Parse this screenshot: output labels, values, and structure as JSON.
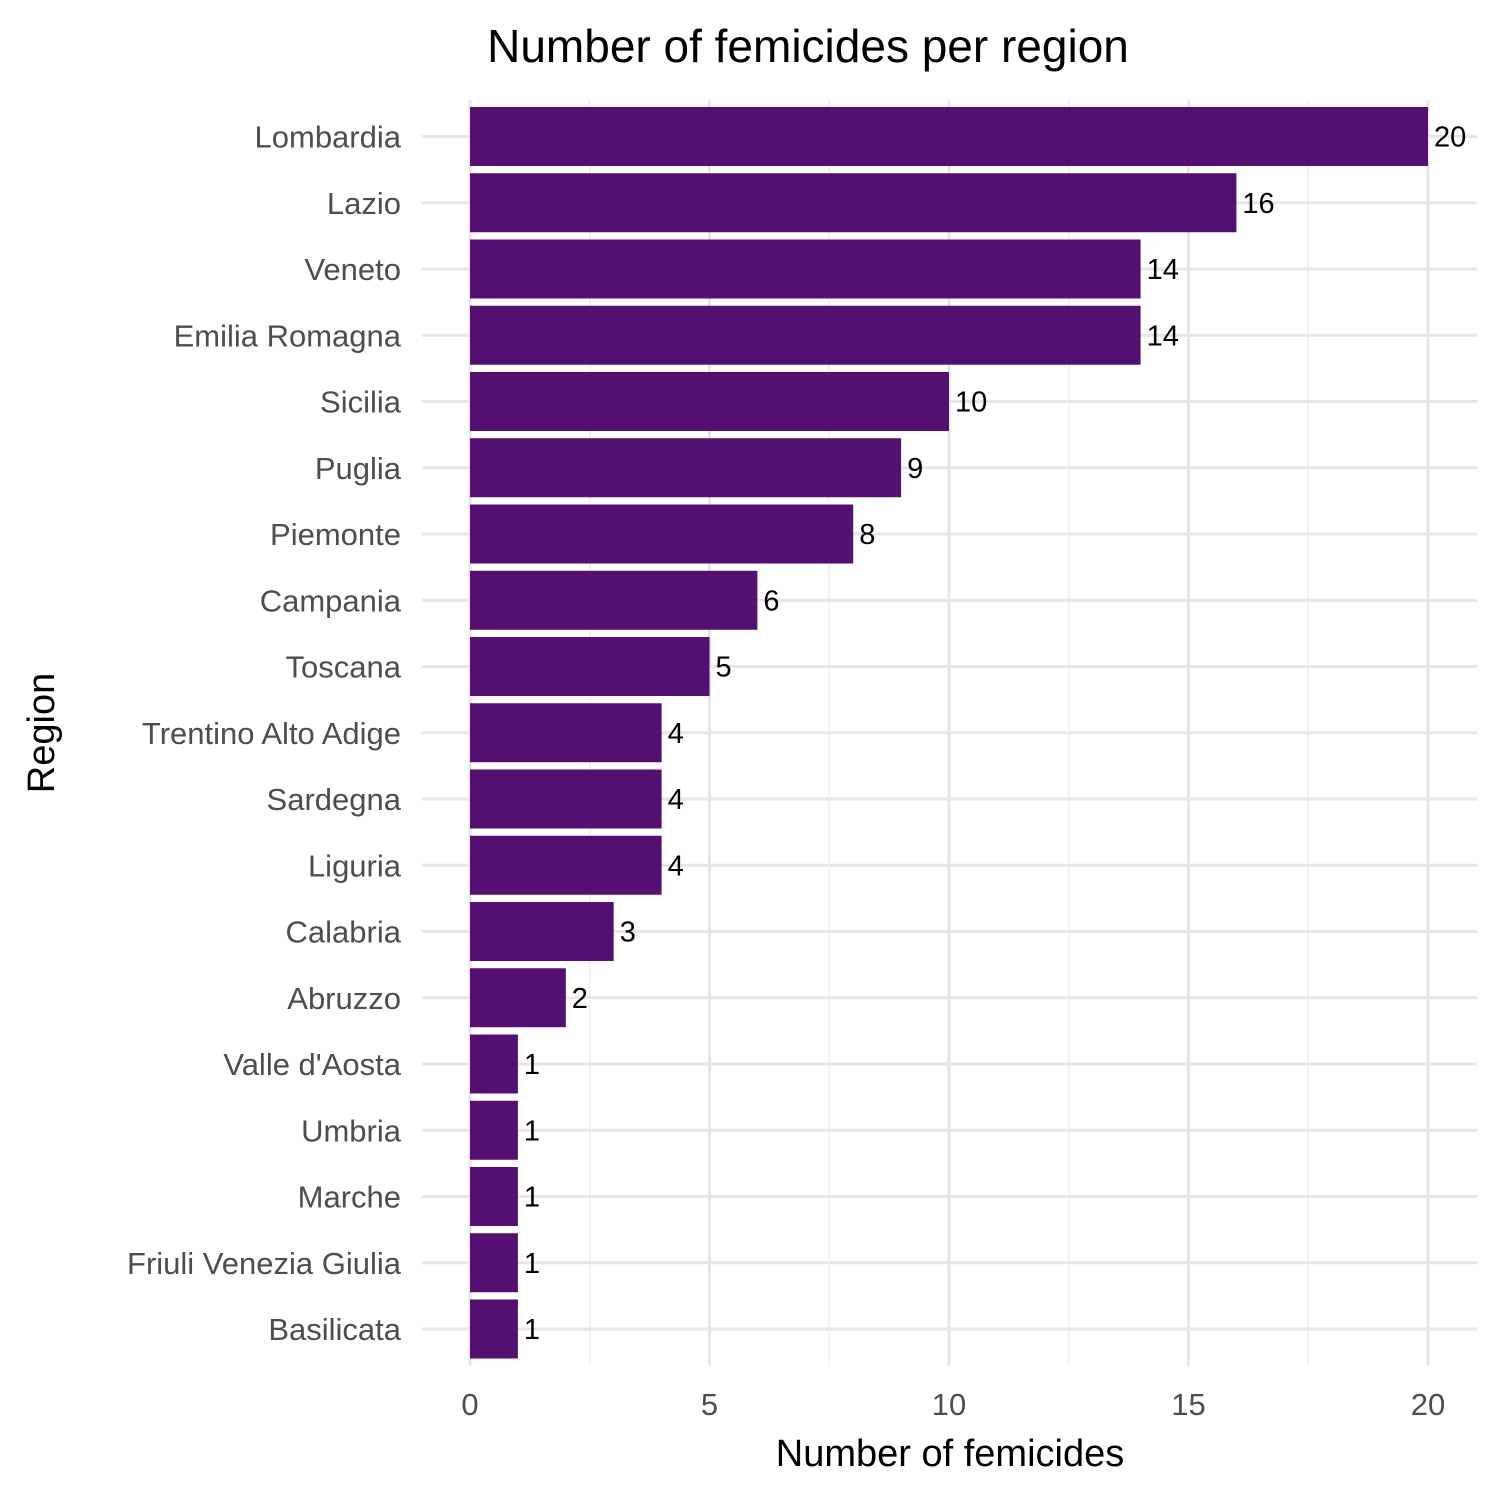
{
  "chart_data": {
    "type": "bar",
    "orientation": "horizontal",
    "title": "Number of femicides per region",
    "xlabel": "Number of femicides",
    "ylabel": "Region",
    "categories": [
      "Lombardia",
      "Lazio",
      "Veneto",
      "Emilia Romagna",
      "Sicilia",
      "Puglia",
      "Piemonte",
      "Campania",
      "Toscana",
      "Trentino Alto Adige",
      "Sardegna",
      "Liguria",
      "Calabria",
      "Abruzzo",
      "Valle d'Aosta",
      "Umbria",
      "Marche",
      "Friuli Venezia Giulia",
      "Basilicata"
    ],
    "values": [
      20,
      16,
      14,
      14,
      10,
      9,
      8,
      6,
      5,
      4,
      4,
      4,
      3,
      2,
      1,
      1,
      1,
      1,
      1
    ],
    "xticks": [
      "0",
      "5",
      "10",
      "15",
      "20"
    ],
    "xlim": [
      0,
      20
    ],
    "bar_color": "#541071",
    "grid": true,
    "legend": "none"
  }
}
